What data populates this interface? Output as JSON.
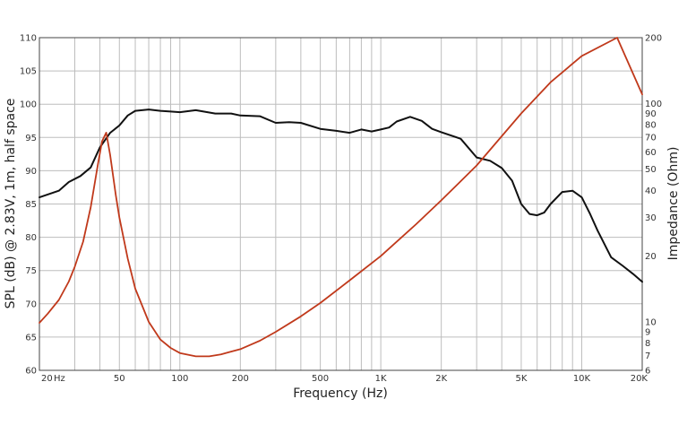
{
  "chart_data": {
    "type": "line",
    "xlabel": "Frequency (Hz)",
    "ylabel": "SPL (dB) @ 2.83V, 1m, half space",
    "y2label": "Impedance (Ohm)",
    "x_scale": "log",
    "y2_scale": "log",
    "xlim": [
      20,
      20000
    ],
    "ylim": [
      60,
      110
    ],
    "y2lim": [
      6,
      200
    ],
    "grid": true,
    "x_tick_labels": [
      "20",
      "Hz",
      "50",
      "100",
      "200",
      "500",
      "1K",
      "2K",
      "5K",
      "10K",
      "20K"
    ],
    "y_tick_labels": [
      "60",
      "65",
      "70",
      "75",
      "80",
      "85",
      "90",
      "95",
      "100",
      "105",
      "110"
    ],
    "y2_tick_labels": [
      "6",
      "7",
      "8",
      "9",
      "10",
      "20",
      "30",
      "40",
      "50",
      "60",
      "70",
      "80",
      "90",
      "100",
      "200"
    ],
    "series": [
      {
        "color": "#111111",
        "axis": "left",
        "x": [
          20,
          25,
          28,
          32,
          36,
          40,
          45,
          50,
          55,
          60,
          70,
          80,
          90,
          100,
          120,
          150,
          180,
          200,
          250,
          300,
          350,
          400,
          500,
          600,
          700,
          800,
          900,
          1000,
          1100,
          1200,
          1400,
          1600,
          1800,
          2000,
          2500,
          3000,
          3500,
          4000,
          4500,
          5000,
          5500,
          6000,
          6500,
          7000,
          8000,
          9000,
          10000,
          11000,
          12000,
          14000,
          16000,
          18000,
          20000
        ],
        "values": [
          86,
          87,
          88.3,
          89.2,
          90.5,
          93.5,
          95.7,
          96.8,
          98.3,
          99,
          99.2,
          99,
          98.9,
          98.8,
          99.1,
          98.6,
          98.6,
          98.3,
          98.2,
          97.2,
          97.3,
          97.2,
          96.3,
          96,
          95.7,
          96.2,
          95.9,
          96.2,
          96.5,
          97.4,
          98.1,
          97.5,
          96.3,
          95.8,
          94.8,
          92,
          91.5,
          90.4,
          88.5,
          85,
          83.5,
          83.3,
          83.7,
          85,
          86.8,
          87,
          86,
          83.5,
          81,
          77,
          75.7,
          74.5,
          73.3
        ]
      },
      {
        "color": "#c0391b",
        "axis": "right",
        "x": [
          20,
          22,
          25,
          28,
          30,
          33,
          36,
          39,
          41,
          43,
          45,
          48,
          50,
          55,
          60,
          70,
          80,
          90,
          100,
          120,
          140,
          160,
          200,
          250,
          300,
          400,
          500,
          700,
          1000,
          1500,
          2000,
          3000,
          5000,
          7000,
          10000,
          15000,
          20000
        ],
        "values": [
          9.9,
          10.9,
          12.6,
          15.3,
          17.9,
          23.3,
          33.5,
          52,
          67,
          73.5,
          58,
          38,
          30,
          19.5,
          14.2,
          10,
          8.3,
          7.6,
          7.2,
          6.95,
          6.95,
          7.1,
          7.5,
          8.2,
          9,
          10.6,
          12.2,
          15.5,
          20,
          28,
          36,
          52,
          90,
          125,
          165,
          200,
          110
        ]
      }
    ]
  }
}
